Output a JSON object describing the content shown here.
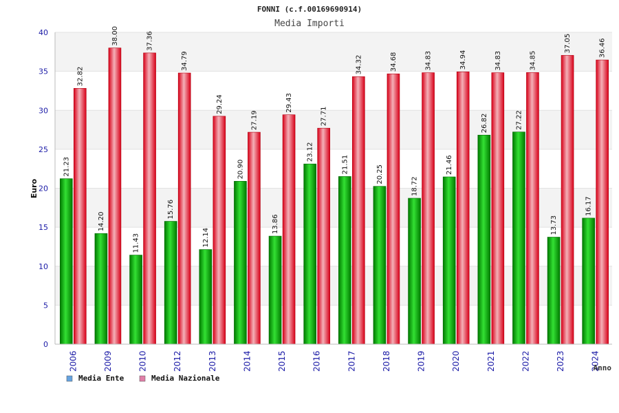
{
  "chart_data": {
    "type": "bar",
    "title": "FONNI (c.f.00169690914)",
    "subtitle": "Media Importi",
    "ylabel": "Euro",
    "xlabel": "Anno",
    "ylim": [
      0,
      40
    ],
    "yticks": [
      "0",
      "5",
      "10",
      "15",
      "20",
      "25",
      "30",
      "35",
      "40"
    ],
    "categories": [
      "2006",
      "2009",
      "2010",
      "2012",
      "2013",
      "2014",
      "2015",
      "2016",
      "2017",
      "2018",
      "2019",
      "2020",
      "2021",
      "2022",
      "2023",
      "2024"
    ],
    "series": [
      {
        "name": "Media Ente",
        "color": "#00c000",
        "legend_color": "#66a3e0",
        "values": [
          21.23,
          14.2,
          11.43,
          15.76,
          12.14,
          20.9,
          13.86,
          23.12,
          21.51,
          20.25,
          18.72,
          21.46,
          26.82,
          27.22,
          13.73,
          16.17
        ],
        "labels": [
          "21.23",
          "14.20",
          "11.43",
          "15.76",
          "12.14",
          "20.90",
          "13.86",
          "23.12",
          "21.51",
          "20.25",
          "18.72",
          "21.46",
          "26.82",
          "27.22",
          "13.73",
          "16.17"
        ]
      },
      {
        "name": "Media Nazionale",
        "color": "#e8001c",
        "legend_color": "#e07fa8",
        "values": [
          32.82,
          38.0,
          37.36,
          34.79,
          29.24,
          27.19,
          29.43,
          27.71,
          34.32,
          34.68,
          34.83,
          34.94,
          34.83,
          34.85,
          37.05,
          36.46
        ],
        "labels": [
          "32.82",
          "38.00",
          "37.36",
          "34.79",
          "29.24",
          "27.19",
          "29.43",
          "27.71",
          "34.32",
          "34.68",
          "34.83",
          "34.94",
          "34.83",
          "34.85",
          "37.05",
          "36.46"
        ]
      }
    ],
    "grid": true,
    "legend": "bottom-left"
  }
}
